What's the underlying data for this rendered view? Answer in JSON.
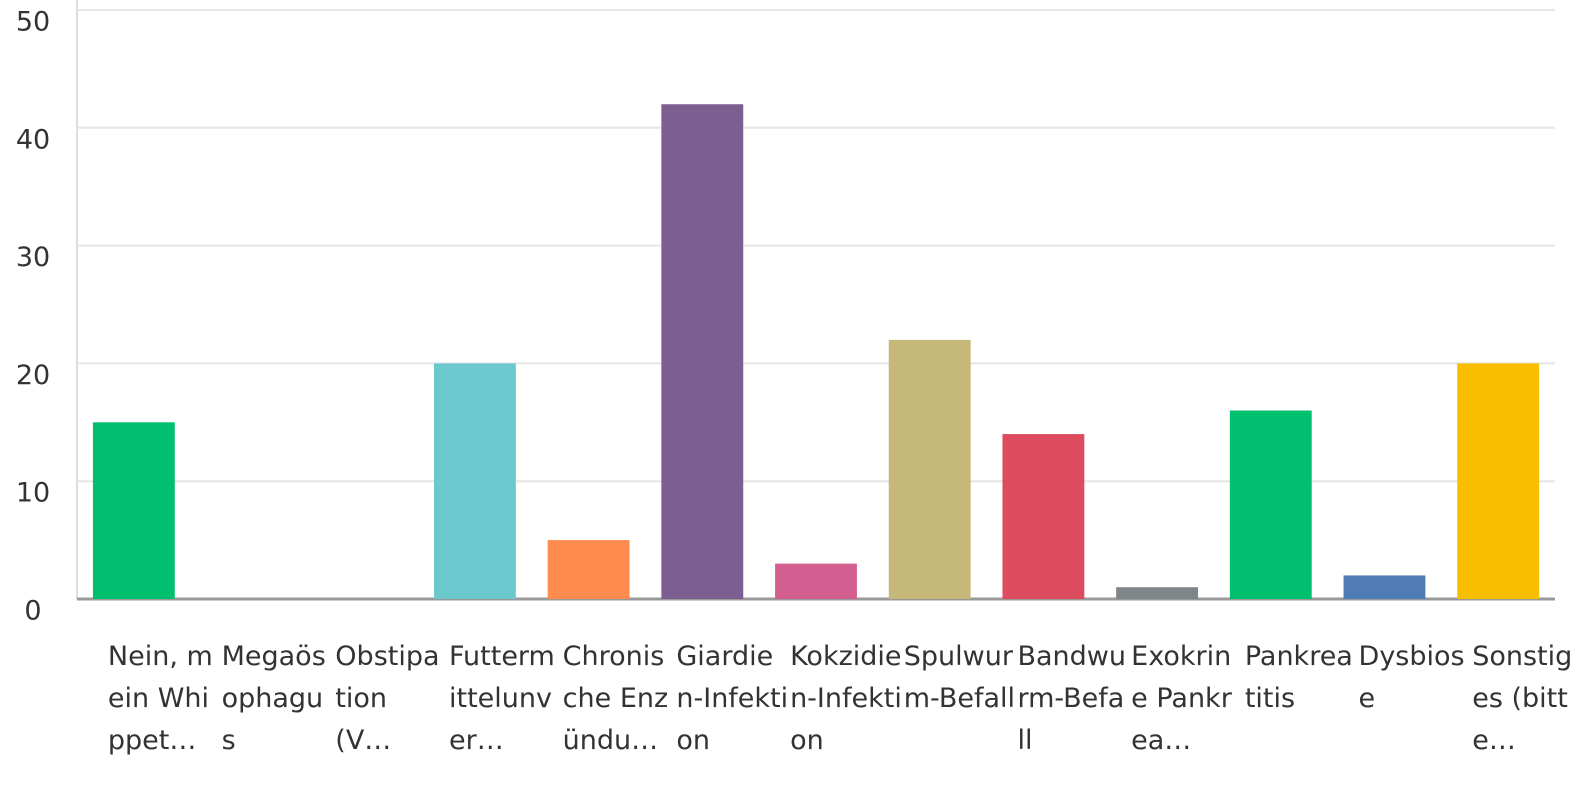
{
  "chart_data": {
    "type": "bar",
    "categories": [
      "Nein, mein Whippet…",
      "Megaösophagus",
      "Obstipation (V…",
      "Futtermittelunver…",
      "Chronische Enzündu…",
      "Giardien-Infektion",
      "Kokzidien-Infektion",
      "Spulwurm-Befall",
      "Bandwurm-Befall",
      "Exokrine Pankrea…",
      "Pankreatitis",
      "Dysbiose",
      "Sonstiges (bitte…"
    ],
    "values": [
      15,
      0,
      0,
      20,
      5,
      42,
      3,
      22,
      14,
      1,
      16,
      2,
      20
    ],
    "colors": [
      "#00bf6f",
      "#00bf6f",
      "#00bf6f",
      "#6bc8cd",
      "#ff8b4f",
      "#7d5e90",
      "#d25f90",
      "#c6b879",
      "#dd4b5e",
      "#7f868a",
      "#00bf6f",
      "#507cb6",
      "#f9be00"
    ],
    "ylim": [
      0,
      50
    ],
    "yticks": [
      0,
      10,
      20,
      30,
      40,
      50
    ],
    "grid": true
  }
}
